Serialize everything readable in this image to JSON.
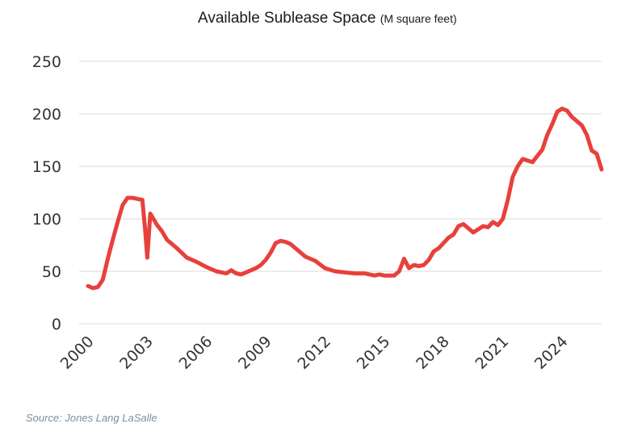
{
  "chart_data": {
    "type": "line",
    "title": "Available Sublease Space",
    "title_unit": "(M square feet)",
    "source": "Source: Jones Lang LaSalle",
    "ylim": [
      0,
      250
    ],
    "xlim": [
      2000,
      2025.5
    ],
    "y_ticks": [
      0,
      50,
      100,
      150,
      200,
      250
    ],
    "x_ticks": [
      2000,
      2003,
      2006,
      2009,
      2012,
      2015,
      2018,
      2021,
      2024
    ],
    "grid": "horizontal",
    "line_color": "#e8403c",
    "series": [
      {
        "points": [
          [
            2000.0,
            36
          ],
          [
            2000.25,
            34
          ],
          [
            2000.5,
            35
          ],
          [
            2000.75,
            42
          ],
          [
            2001.0,
            62
          ],
          [
            2001.25,
            80
          ],
          [
            2001.5,
            97
          ],
          [
            2001.75,
            113
          ],
          [
            2002.0,
            120
          ],
          [
            2002.25,
            120
          ],
          [
            2002.5,
            119
          ],
          [
            2002.75,
            118
          ],
          [
            2002.9,
            88
          ],
          [
            2003.0,
            63
          ],
          [
            2003.15,
            105
          ],
          [
            2003.5,
            94
          ],
          [
            2003.75,
            88
          ],
          [
            2004.0,
            80
          ],
          [
            2004.5,
            72
          ],
          [
            2005.0,
            63
          ],
          [
            2005.5,
            59
          ],
          [
            2006.0,
            54
          ],
          [
            2006.5,
            50
          ],
          [
            2007.0,
            48
          ],
          [
            2007.25,
            51
          ],
          [
            2007.5,
            48
          ],
          [
            2007.75,
            47
          ],
          [
            2008.0,
            49
          ],
          [
            2008.5,
            53
          ],
          [
            2008.75,
            56
          ],
          [
            2009.0,
            61
          ],
          [
            2009.25,
            68
          ],
          [
            2009.5,
            77
          ],
          [
            2009.75,
            79
          ],
          [
            2010.0,
            78
          ],
          [
            2010.25,
            76
          ],
          [
            2010.75,
            68
          ],
          [
            2011.0,
            64
          ],
          [
            2011.5,
            60
          ],
          [
            2012.0,
            53
          ],
          [
            2012.5,
            50
          ],
          [
            2013.0,
            49
          ],
          [
            2013.5,
            48
          ],
          [
            2014.0,
            48
          ],
          [
            2014.5,
            46
          ],
          [
            2014.75,
            47
          ],
          [
            2015.0,
            46
          ],
          [
            2015.5,
            46
          ],
          [
            2015.75,
            50
          ],
          [
            2016.0,
            62
          ],
          [
            2016.25,
            53
          ],
          [
            2016.5,
            56
          ],
          [
            2016.75,
            55
          ],
          [
            2017.0,
            56
          ],
          [
            2017.25,
            61
          ],
          [
            2017.5,
            69
          ],
          [
            2017.75,
            72
          ],
          [
            2018.0,
            77
          ],
          [
            2018.25,
            82
          ],
          [
            2018.5,
            85
          ],
          [
            2018.75,
            93
          ],
          [
            2019.0,
            95
          ],
          [
            2019.5,
            87
          ],
          [
            2020.0,
            93
          ],
          [
            2020.25,
            92
          ],
          [
            2020.5,
            97
          ],
          [
            2020.75,
            94
          ],
          [
            2021.0,
            100
          ],
          [
            2021.25,
            118
          ],
          [
            2021.5,
            140
          ],
          [
            2021.75,
            150
          ],
          [
            2022.0,
            157
          ],
          [
            2022.5,
            154
          ],
          [
            2023.0,
            166
          ],
          [
            2023.25,
            180
          ],
          [
            2023.5,
            190
          ],
          [
            2023.75,
            202
          ],
          [
            2024.0,
            205
          ],
          [
            2024.25,
            203
          ],
          [
            2024.5,
            197
          ],
          [
            2025.0,
            189
          ],
          [
            2025.25,
            180
          ],
          [
            2025.5,
            165
          ],
          [
            2025.75,
            162
          ],
          [
            2026.0,
            147
          ]
        ]
      }
    ]
  }
}
